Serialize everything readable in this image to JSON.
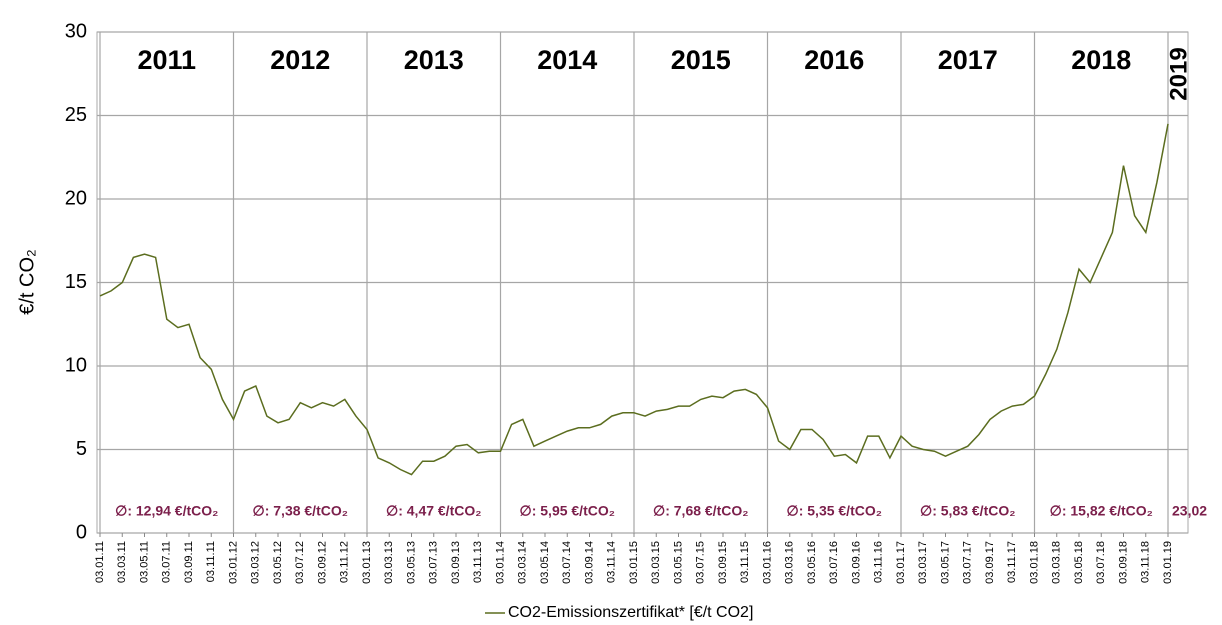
{
  "chart_data": {
    "type": "line",
    "y_label": "€/t CO₂",
    "categories": [
      "03.01.11",
      null,
      "03.03.11",
      null,
      "03.05.11",
      null,
      "03.07.11",
      null,
      "03.09.11",
      null,
      "03.11.11",
      null,
      "03.01.12",
      null,
      "03.03.12",
      null,
      "03.05.12",
      null,
      "03.07.12",
      null,
      "03.09.12",
      null,
      "03.11.12",
      null,
      "03.01.13",
      null,
      "03.03.13",
      null,
      "03.05.13",
      null,
      "03.07.13",
      null,
      "03.09.13",
      null,
      "03.11.13",
      null,
      "03.01.14",
      null,
      "03.03.14",
      null,
      "03.05.14",
      null,
      "03.07.14",
      null,
      "03.09.14",
      null,
      "03.11.14",
      null,
      "03.01.15",
      null,
      "03.03.15",
      null,
      "03.05.15",
      null,
      "03.07.15",
      null,
      "03.09.15",
      null,
      "03.11.15",
      null,
      "03.01.16",
      null,
      "03.03.16",
      null,
      "03.05.16",
      null,
      "03.07.16",
      null,
      "03.09.16",
      null,
      "03.11.16",
      null,
      "03.01.17",
      null,
      "03.03.17",
      null,
      "03.05.17",
      null,
      "03.07.17",
      null,
      "03.09.17",
      null,
      "03.11.17",
      null,
      "03.01.18",
      null,
      "03.03.18",
      null,
      "03.05.18",
      null,
      "03.07.18",
      null,
      "03.09.18",
      null,
      "03.11.18",
      null,
      "03.01.19"
    ],
    "series": [
      {
        "name": "CO2-Emissionszertifikat* [€/t CO2]",
        "color": "#5b6d1f",
        "values": [
          14.2,
          14.5,
          15.0,
          16.5,
          16.7,
          16.5,
          12.8,
          12.3,
          12.5,
          10.5,
          9.8,
          8.0,
          6.8,
          8.5,
          8.8,
          7.0,
          6.6,
          6.8,
          7.8,
          7.5,
          7.8,
          7.6,
          8.0,
          7.0,
          6.2,
          4.5,
          4.2,
          3.8,
          3.5,
          4.3,
          4.3,
          4.6,
          5.2,
          5.3,
          4.8,
          4.9,
          4.9,
          6.5,
          6.8,
          5.2,
          5.5,
          5.8,
          6.1,
          6.3,
          6.3,
          6.5,
          7.0,
          7.2,
          7.2,
          7.0,
          7.3,
          7.4,
          7.6,
          7.6,
          8.0,
          8.2,
          8.1,
          8.5,
          8.6,
          8.3,
          7.5,
          5.5,
          5.0,
          6.2,
          6.2,
          5.6,
          4.6,
          4.7,
          4.2,
          5.8,
          5.8,
          4.5,
          5.8,
          5.2,
          5.0,
          4.9,
          4.6,
          4.9,
          5.2,
          5.9,
          6.8,
          7.3,
          7.6,
          7.7,
          8.2,
          9.5,
          11.0,
          13.2,
          15.8,
          15.0,
          16.5,
          18.0,
          22.0,
          19.0,
          18.0,
          21.0,
          24.5
        ]
      }
    ],
    "periods": [
      {
        "label": "2011",
        "average": "∅: 12,94 €/tCO₂"
      },
      {
        "label": "2012",
        "average": "∅: 7,38 €/tCO₂"
      },
      {
        "label": "2013",
        "average": "∅: 4,47 €/tCO₂"
      },
      {
        "label": "2014",
        "average": "∅: 5,95 €/tCO₂"
      },
      {
        "label": "2015",
        "average": "∅: 7,68 €/tCO₂"
      },
      {
        "label": "2016",
        "average": "∅: 5,35 €/tCO₂"
      },
      {
        "label": "2017",
        "average": "∅: 5,83 €/tCO₂"
      },
      {
        "label": "2018",
        "average": "∅: 15,82 €/tCO₂"
      },
      {
        "label": "2019",
        "average": "23,02"
      }
    ],
    "ylim": [
      0,
      30
    ],
    "yticks": [
      0,
      5,
      10,
      15,
      20,
      25,
      30
    ],
    "grid": true,
    "legend": "bottom"
  }
}
